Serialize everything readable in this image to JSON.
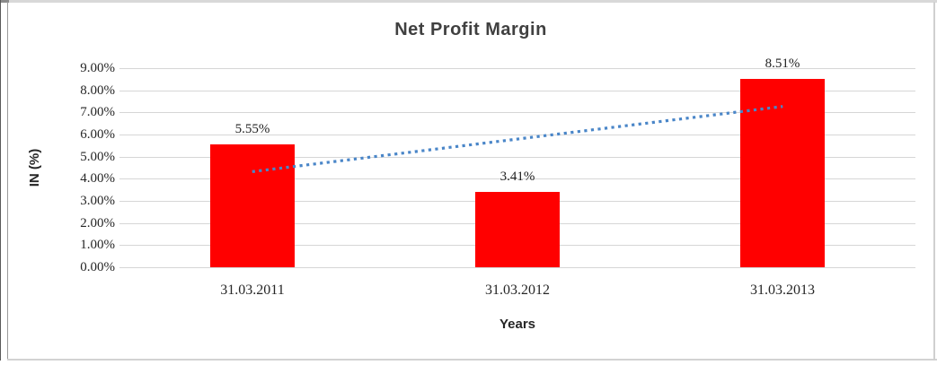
{
  "window": {
    "background": "#ffffff",
    "frame_light_color": "#d6d6d6",
    "frame_dark_color": "#5a5a5a"
  },
  "chart": {
    "title": "Net Profit Margin",
    "title_color": "#404040",
    "ylabel": "IN (%)",
    "xlabel": "Years",
    "bar_color": "#ff0000",
    "trendline_color": "#4a86c8",
    "gridline_color": "#d6d6d6",
    "axis_text_color": "#262626"
  },
  "chart_data": {
    "type": "bar",
    "title": "Net Profit Margin",
    "categories": [
      "31.03.2011",
      "31.03.2012",
      "31.03.2013"
    ],
    "values": [
      5.55,
      3.41,
      8.51
    ],
    "data_labels": [
      "5.55%",
      "3.41%",
      "8.51%"
    ],
    "xlabel": "Years",
    "ylabel": "IN (%)",
    "ylim": [
      0,
      9
    ],
    "ytick_step": 1,
    "ytick_labels": [
      "0.00%",
      "1.00%",
      "2.00%",
      "3.00%",
      "4.00%",
      "5.00%",
      "6.00%",
      "7.00%",
      "8.00%",
      "9.00%"
    ],
    "grid": true,
    "legend": false,
    "series_color": "#ff0000",
    "trendline": {
      "type": "linear",
      "style": "dotted",
      "color": "#4a86c8",
      "start_value": 4.32,
      "end_value": 7.27
    }
  }
}
